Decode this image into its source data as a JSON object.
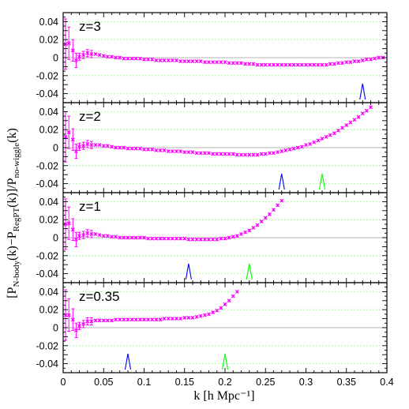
{
  "chart_data": {
    "type": "scatter",
    "xlabel": "k [h Mpc⁻¹]",
    "ylabel_parts": {
      "open": "[P",
      "sub1": "N-body",
      "mid1": "(k)−P",
      "sub2": "RegPT",
      "mid2": "(k)]/P",
      "sub3": "no-wiggle",
      "close": "(k)"
    },
    "xlim": [
      0,
      0.4
    ],
    "ylim": [
      -0.05,
      0.05
    ],
    "x_ticks": [
      "0",
      "0.05",
      "0.1",
      "0.15",
      "0.2",
      "0.25",
      "0.3",
      "0.35",
      "0.4"
    ],
    "y_ticks": [
      "-0.04",
      "-0.02",
      "0",
      "0.02",
      "0.04"
    ],
    "guide_lines": [
      -0.04,
      -0.02,
      0.02,
      0.04
    ],
    "colors": {
      "data": "#ff00ff",
      "arrow_blue": "#0000ff",
      "arrow_green": "#00ff00",
      "guide": "#8fff8f",
      "zero": "#9a9a9a"
    },
    "panels": [
      {
        "label": "z=3",
        "blue_arrow_k": 0.37,
        "green_arrow_k": null,
        "points": [
          [
            0.003,
            0.015
          ],
          [
            0.007,
            0.016
          ],
          [
            0.012,
            0.008
          ],
          [
            0.016,
            -0.003
          ],
          [
            0.02,
            0.001
          ],
          [
            0.025,
            0.003
          ],
          [
            0.03,
            0.005
          ],
          [
            0.035,
            0.004
          ],
          [
            0.04,
            0.004
          ],
          [
            0.045,
            0.003
          ],
          [
            0.05,
            0.002
          ],
          [
            0.055,
            0.001
          ],
          [
            0.06,
            0.001
          ],
          [
            0.065,
            0.0
          ],
          [
            0.07,
            0.0
          ],
          [
            0.075,
            -0.001
          ],
          [
            0.08,
            -0.001
          ],
          [
            0.085,
            -0.001
          ],
          [
            0.09,
            -0.001
          ],
          [
            0.095,
            -0.001
          ],
          [
            0.1,
            -0.002
          ],
          [
            0.105,
            -0.002
          ],
          [
            0.11,
            -0.002
          ],
          [
            0.115,
            -0.003
          ],
          [
            0.12,
            -0.003
          ],
          [
            0.125,
            -0.003
          ],
          [
            0.13,
            -0.003
          ],
          [
            0.135,
            -0.003
          ],
          [
            0.14,
            -0.003
          ],
          [
            0.145,
            -0.004
          ],
          [
            0.15,
            -0.004
          ],
          [
            0.155,
            -0.004
          ],
          [
            0.16,
            -0.004
          ],
          [
            0.165,
            -0.004
          ],
          [
            0.17,
            -0.004
          ],
          [
            0.175,
            -0.005
          ],
          [
            0.18,
            -0.005
          ],
          [
            0.185,
            -0.005
          ],
          [
            0.19,
            -0.005
          ],
          [
            0.195,
            -0.005
          ],
          [
            0.2,
            -0.005
          ],
          [
            0.205,
            -0.006
          ],
          [
            0.21,
            -0.006
          ],
          [
            0.215,
            -0.006
          ],
          [
            0.22,
            -0.006
          ],
          [
            0.225,
            -0.007
          ],
          [
            0.23,
            -0.007
          ],
          [
            0.235,
            -0.007
          ],
          [
            0.24,
            -0.008
          ],
          [
            0.245,
            -0.008
          ],
          [
            0.25,
            -0.008
          ],
          [
            0.255,
            -0.008
          ],
          [
            0.26,
            -0.008
          ],
          [
            0.265,
            -0.008
          ],
          [
            0.27,
            -0.008
          ],
          [
            0.275,
            -0.008
          ],
          [
            0.28,
            -0.008
          ],
          [
            0.285,
            -0.008
          ],
          [
            0.29,
            -0.008
          ],
          [
            0.295,
            -0.008
          ],
          [
            0.3,
            -0.008
          ],
          [
            0.305,
            -0.008
          ],
          [
            0.31,
            -0.008
          ],
          [
            0.315,
            -0.008
          ],
          [
            0.32,
            -0.008
          ],
          [
            0.325,
            -0.008
          ],
          [
            0.33,
            -0.007
          ],
          [
            0.335,
            -0.007
          ],
          [
            0.34,
            -0.006
          ],
          [
            0.345,
            -0.006
          ],
          [
            0.35,
            -0.005
          ],
          [
            0.355,
            -0.005
          ],
          [
            0.36,
            -0.004
          ],
          [
            0.365,
            -0.004
          ],
          [
            0.37,
            -0.003
          ],
          [
            0.375,
            -0.002
          ],
          [
            0.38,
            -0.002
          ],
          [
            0.385,
            -0.001
          ],
          [
            0.39,
            0.0
          ],
          [
            0.395,
            0.0
          ]
        ]
      },
      {
        "label": "z=2",
        "blue_arrow_k": 0.27,
        "green_arrow_k": 0.32,
        "points": [
          [
            0.003,
            0.012
          ],
          [
            0.007,
            0.017
          ],
          [
            0.012,
            0.009
          ],
          [
            0.016,
            -0.004
          ],
          [
            0.02,
            0.001
          ],
          [
            0.025,
            0.002
          ],
          [
            0.03,
            0.004
          ],
          [
            0.035,
            0.003
          ],
          [
            0.04,
            0.003
          ],
          [
            0.045,
            0.003
          ],
          [
            0.05,
            0.002
          ],
          [
            0.055,
            0.002
          ],
          [
            0.06,
            0.001
          ],
          [
            0.065,
            0.0
          ],
          [
            0.07,
            0.0
          ],
          [
            0.075,
            0.0
          ],
          [
            0.08,
            -0.001
          ],
          [
            0.085,
            -0.001
          ],
          [
            0.09,
            -0.001
          ],
          [
            0.095,
            -0.001
          ],
          [
            0.1,
            -0.002
          ],
          [
            0.105,
            -0.002
          ],
          [
            0.11,
            -0.002
          ],
          [
            0.115,
            -0.003
          ],
          [
            0.12,
            -0.003
          ],
          [
            0.125,
            -0.003
          ],
          [
            0.13,
            -0.004
          ],
          [
            0.135,
            -0.004
          ],
          [
            0.14,
            -0.004
          ],
          [
            0.145,
            -0.004
          ],
          [
            0.15,
            -0.005
          ],
          [
            0.155,
            -0.005
          ],
          [
            0.16,
            -0.005
          ],
          [
            0.165,
            -0.006
          ],
          [
            0.17,
            -0.006
          ],
          [
            0.175,
            -0.006
          ],
          [
            0.18,
            -0.006
          ],
          [
            0.185,
            -0.007
          ],
          [
            0.19,
            -0.007
          ],
          [
            0.195,
            -0.007
          ],
          [
            0.2,
            -0.007
          ],
          [
            0.205,
            -0.007
          ],
          [
            0.21,
            -0.007
          ],
          [
            0.215,
            -0.008
          ],
          [
            0.22,
            -0.008
          ],
          [
            0.225,
            -0.008
          ],
          [
            0.23,
            -0.008
          ],
          [
            0.235,
            -0.008
          ],
          [
            0.24,
            -0.008
          ],
          [
            0.245,
            -0.007
          ],
          [
            0.25,
            -0.007
          ],
          [
            0.255,
            -0.006
          ],
          [
            0.26,
            -0.006
          ],
          [
            0.265,
            -0.005
          ],
          [
            0.27,
            -0.004
          ],
          [
            0.275,
            -0.003
          ],
          [
            0.28,
            -0.002
          ],
          [
            0.285,
            -0.001
          ],
          [
            0.29,
            0.0
          ],
          [
            0.295,
            0.001
          ],
          [
            0.3,
            0.003
          ],
          [
            0.305,
            0.004
          ],
          [
            0.31,
            0.006
          ],
          [
            0.315,
            0.008
          ],
          [
            0.32,
            0.01
          ],
          [
            0.325,
            0.012
          ],
          [
            0.33,
            0.014
          ],
          [
            0.335,
            0.016
          ],
          [
            0.34,
            0.019
          ],
          [
            0.345,
            0.022
          ],
          [
            0.35,
            0.025
          ],
          [
            0.355,
            0.028
          ],
          [
            0.36,
            0.031
          ],
          [
            0.365,
            0.034
          ],
          [
            0.37,
            0.038
          ],
          [
            0.375,
            0.041
          ],
          [
            0.38,
            0.045
          ]
        ]
      },
      {
        "label": "z=1",
        "blue_arrow_k": 0.155,
        "green_arrow_k": 0.23,
        "points": [
          [
            0.003,
            0.015
          ],
          [
            0.007,
            0.016
          ],
          [
            0.012,
            0.009
          ],
          [
            0.016,
            -0.002
          ],
          [
            0.02,
            0.002
          ],
          [
            0.025,
            0.003
          ],
          [
            0.03,
            0.005
          ],
          [
            0.035,
            0.004
          ],
          [
            0.04,
            0.004
          ],
          [
            0.045,
            0.003
          ],
          [
            0.05,
            0.002
          ],
          [
            0.055,
            0.002
          ],
          [
            0.06,
            0.001
          ],
          [
            0.065,
            0.001
          ],
          [
            0.07,
            0.0
          ],
          [
            0.075,
            0.0
          ],
          [
            0.08,
            0.0
          ],
          [
            0.085,
            0.0
          ],
          [
            0.09,
            0.0
          ],
          [
            0.095,
            0.0
          ],
          [
            0.1,
            0.0
          ],
          [
            0.105,
            -0.001
          ],
          [
            0.11,
            -0.001
          ],
          [
            0.115,
            -0.001
          ],
          [
            0.12,
            -0.001
          ],
          [
            0.125,
            -0.001
          ],
          [
            0.13,
            -0.001
          ],
          [
            0.135,
            -0.001
          ],
          [
            0.14,
            -0.001
          ],
          [
            0.145,
            -0.001
          ],
          [
            0.15,
            -0.001
          ],
          [
            0.155,
            -0.002
          ],
          [
            0.16,
            -0.002
          ],
          [
            0.165,
            -0.002
          ],
          [
            0.17,
            -0.002
          ],
          [
            0.175,
            -0.002
          ],
          [
            0.18,
            -0.002
          ],
          [
            0.185,
            -0.002
          ],
          [
            0.19,
            -0.002
          ],
          [
            0.195,
            -0.001
          ],
          [
            0.2,
            -0.001
          ],
          [
            0.205,
            0.0
          ],
          [
            0.21,
            0.001
          ],
          [
            0.215,
            0.002
          ],
          [
            0.22,
            0.004
          ],
          [
            0.225,
            0.006
          ],
          [
            0.23,
            0.008
          ],
          [
            0.235,
            0.011
          ],
          [
            0.24,
            0.014
          ],
          [
            0.245,
            0.018
          ],
          [
            0.25,
            0.022
          ],
          [
            0.255,
            0.026
          ],
          [
            0.26,
            0.031
          ],
          [
            0.265,
            0.036
          ],
          [
            0.27,
            0.041
          ]
        ]
      },
      {
        "label": "z=0.35",
        "blue_arrow_k": 0.08,
        "green_arrow_k": 0.2,
        "points": [
          [
            0.003,
            0.014
          ],
          [
            0.007,
            0.014
          ],
          [
            0.012,
            0.009
          ],
          [
            0.016,
            -0.003
          ],
          [
            0.02,
            0.002
          ],
          [
            0.025,
            0.004
          ],
          [
            0.03,
            0.007
          ],
          [
            0.035,
            0.007
          ],
          [
            0.04,
            0.008
          ],
          [
            0.045,
            0.008
          ],
          [
            0.05,
            0.008
          ],
          [
            0.055,
            0.008
          ],
          [
            0.06,
            0.008
          ],
          [
            0.065,
            0.009
          ],
          [
            0.07,
            0.009
          ],
          [
            0.075,
            0.009
          ],
          [
            0.08,
            0.009
          ],
          [
            0.085,
            0.009
          ],
          [
            0.09,
            0.009
          ],
          [
            0.095,
            0.009
          ],
          [
            0.1,
            0.009
          ],
          [
            0.105,
            0.009
          ],
          [
            0.11,
            0.009
          ],
          [
            0.115,
            0.009
          ],
          [
            0.12,
            0.009
          ],
          [
            0.125,
            0.01
          ],
          [
            0.13,
            0.01
          ],
          [
            0.135,
            0.01
          ],
          [
            0.14,
            0.01
          ],
          [
            0.145,
            0.01
          ],
          [
            0.15,
            0.011
          ],
          [
            0.155,
            0.011
          ],
          [
            0.16,
            0.011
          ],
          [
            0.165,
            0.012
          ],
          [
            0.17,
            0.013
          ],
          [
            0.175,
            0.014
          ],
          [
            0.18,
            0.015
          ],
          [
            0.185,
            0.017
          ],
          [
            0.19,
            0.019
          ],
          [
            0.195,
            0.022
          ],
          [
            0.2,
            0.026
          ],
          [
            0.205,
            0.03
          ],
          [
            0.21,
            0.035
          ],
          [
            0.215,
            0.04
          ]
        ]
      }
    ]
  }
}
